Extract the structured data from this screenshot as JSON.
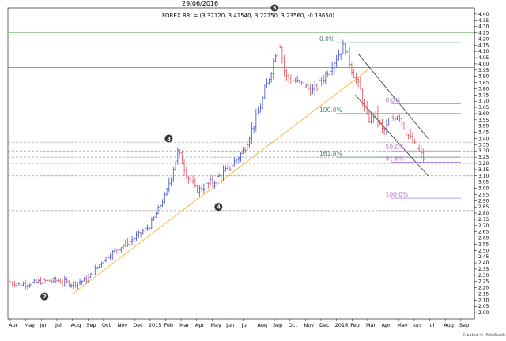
{
  "header": {
    "date_title": "29/06/2016",
    "legend": "FOREX BRL= (3.37120, 3.41540, 3.22750, 3.23560, -0.13650)",
    "credit": "Created in MetaStock"
  },
  "chart_data": {
    "type": "bar",
    "title": "",
    "ylim": [
      1.95,
      4.45
    ],
    "y_ticks": [
      2.0,
      2.05,
      2.1,
      2.15,
      2.2,
      2.25,
      2.3,
      2.35,
      2.4,
      2.45,
      2.5,
      2.55,
      2.6,
      2.65,
      2.7,
      2.75,
      2.8,
      2.85,
      2.9,
      2.95,
      3.0,
      3.05,
      3.1,
      3.15,
      3.2,
      3.25,
      3.3,
      3.35,
      3.4,
      3.45,
      3.5,
      3.55,
      3.6,
      3.65,
      3.7,
      3.75,
      3.8,
      3.85,
      3.9,
      3.95,
      4.0,
      4.05,
      4.1,
      4.15,
      4.2,
      4.25,
      4.3,
      4.35,
      4.4
    ],
    "x_ticks": [
      "Apr",
      "May",
      "Jun",
      "Jul",
      "Aug",
      "Sep",
      "Oct",
      "Nov",
      "Dec",
      "2015",
      "Feb",
      "Mar",
      "Apr",
      "May",
      "Jun",
      "Jul",
      "Aug",
      "Sep",
      "Oct",
      "Nov",
      "Dec",
      "2016",
      "Feb",
      "Mar",
      "Apr",
      "May",
      "Jun",
      "Jul",
      "Aug",
      "Sep"
    ],
    "last_bar": {
      "open": 3.3712,
      "high": 3.4154,
      "low": 3.2275,
      "close": 3.2356,
      "change": -0.1365
    },
    "price_path": [
      [
        0,
        2.24
      ],
      [
        1,
        2.23
      ],
      [
        2,
        2.25
      ],
      [
        3,
        2.26
      ],
      [
        4,
        2.23
      ],
      [
        5,
        2.27
      ],
      [
        6,
        2.43
      ],
      [
        7,
        2.52
      ],
      [
        8,
        2.6
      ],
      [
        9,
        2.7
      ],
      [
        10,
        2.95
      ],
      [
        10.8,
        3.3
      ],
      [
        11.4,
        3.1
      ],
      [
        12,
        2.98
      ],
      [
        13,
        3.05
      ],
      [
        14,
        3.15
      ],
      [
        15,
        3.3
      ],
      [
        16,
        3.62
      ],
      [
        16.8,
        3.95
      ],
      [
        17.3,
        4.2
      ],
      [
        17.7,
        3.9
      ],
      [
        18.5,
        3.85
      ],
      [
        19.5,
        3.78
      ],
      [
        20.5,
        3.95
      ],
      [
        21,
        4.05
      ],
      [
        21.5,
        4.15
      ],
      [
        22,
        3.95
      ],
      [
        22.5,
        3.8
      ],
      [
        23,
        3.55
      ],
      [
        23.5,
        3.6
      ],
      [
        24,
        3.45
      ],
      [
        24.5,
        3.55
      ],
      [
        25,
        3.6
      ],
      [
        25.5,
        3.45
      ],
      [
        26,
        3.35
      ],
      [
        26.6,
        3.24
      ]
    ],
    "horizontal_levels": [
      {
        "value": 4.25,
        "color": "#7fbf7f"
      },
      {
        "value": 3.97,
        "color": "#d94f6e"
      },
      {
        "value": 3.37,
        "color": "#999999"
      },
      {
        "value": 3.3,
        "color": "#999999"
      },
      {
        "value": 3.25,
        "color": "#999999"
      },
      {
        "value": 3.2,
        "color": "#999999"
      },
      {
        "value": 3.1,
        "color": "#999999"
      },
      {
        "value": 2.82,
        "color": "#999999"
      }
    ],
    "fib_levels": [
      {
        "label": "0.0%",
        "value": 4.17,
        "color": "#4a8a7a"
      },
      {
        "label": "100.0%",
        "value": 3.6,
        "color": "#4a8a7a"
      },
      {
        "label": "161.8%",
        "value": 3.25,
        "color": "#4a8a7a"
      },
      {
        "label": "0.0%",
        "value": 3.68,
        "color": "#b07fd0"
      },
      {
        "label": "50.0%",
        "value": 3.3,
        "color": "#b07fd0"
      },
      {
        "label": "61.8%",
        "value": 3.21,
        "color": "#b07fd0"
      },
      {
        "label": "100.0%",
        "value": 2.92,
        "color": "#b07fd0"
      }
    ],
    "trendline": {
      "from": [
        4,
        2.15
      ],
      "to": [
        23,
        3.95
      ],
      "color": "#f5b94a"
    },
    "channel": {
      "upper": {
        "from": [
          22.4,
          4.08
        ],
        "to": [
          26.9,
          3.4
        ]
      },
      "lower": {
        "from": [
          22.2,
          3.75
        ],
        "to": [
          26.9,
          3.1
        ]
      },
      "color": "#333333"
    },
    "markers": [
      {
        "label": "2",
        "x": 2.2,
        "y": 2.13
      },
      {
        "label": "3",
        "x": 10.2,
        "y": 3.4
      },
      {
        "label": "4",
        "x": 13.4,
        "y": 2.85
      }
    ],
    "top_marker": {
      "label": "5",
      "x": 17.0
    }
  }
}
